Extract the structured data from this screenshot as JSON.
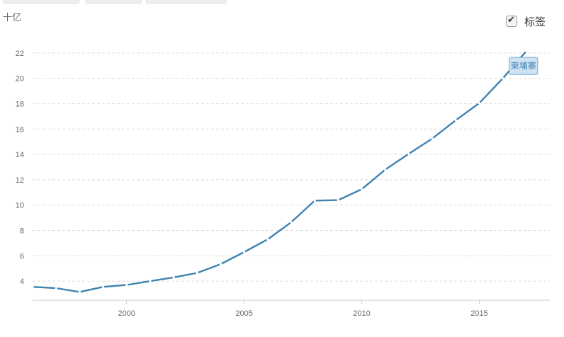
{
  "labels_toggle": {
    "label": "标签",
    "checked": true
  },
  "data_tag": {
    "text": "柬埔寨"
  },
  "chart_data": {
    "type": "line",
    "title": "",
    "xlabel": "",
    "ylabel": "十亿",
    "xlim": [
      1996,
      2018
    ],
    "ylim": [
      2.5,
      23.5
    ],
    "xticks": [
      2000,
      2005,
      2010,
      2015
    ],
    "yticks": [
      4,
      6,
      8,
      10,
      12,
      14,
      16,
      18,
      20,
      22
    ],
    "grid": "horizontal-dashed",
    "series": [
      {
        "name": "柬埔寨",
        "color": "#3f84b0",
        "x": [
          1996,
          1997,
          1998,
          1999,
          2000,
          2001,
          2002,
          2003,
          2004,
          2005,
          2006,
          2007,
          2008,
          2009,
          2010,
          2011,
          2012,
          2013,
          2014,
          2015,
          2016,
          2017
        ],
        "y": [
          3.55,
          3.45,
          3.15,
          3.55,
          3.7,
          4.0,
          4.3,
          4.65,
          5.35,
          6.3,
          7.3,
          8.65,
          10.35,
          10.4,
          11.25,
          12.8,
          14.05,
          15.25,
          16.7,
          18.05,
          20.0,
          22.15
        ]
      }
    ]
  }
}
